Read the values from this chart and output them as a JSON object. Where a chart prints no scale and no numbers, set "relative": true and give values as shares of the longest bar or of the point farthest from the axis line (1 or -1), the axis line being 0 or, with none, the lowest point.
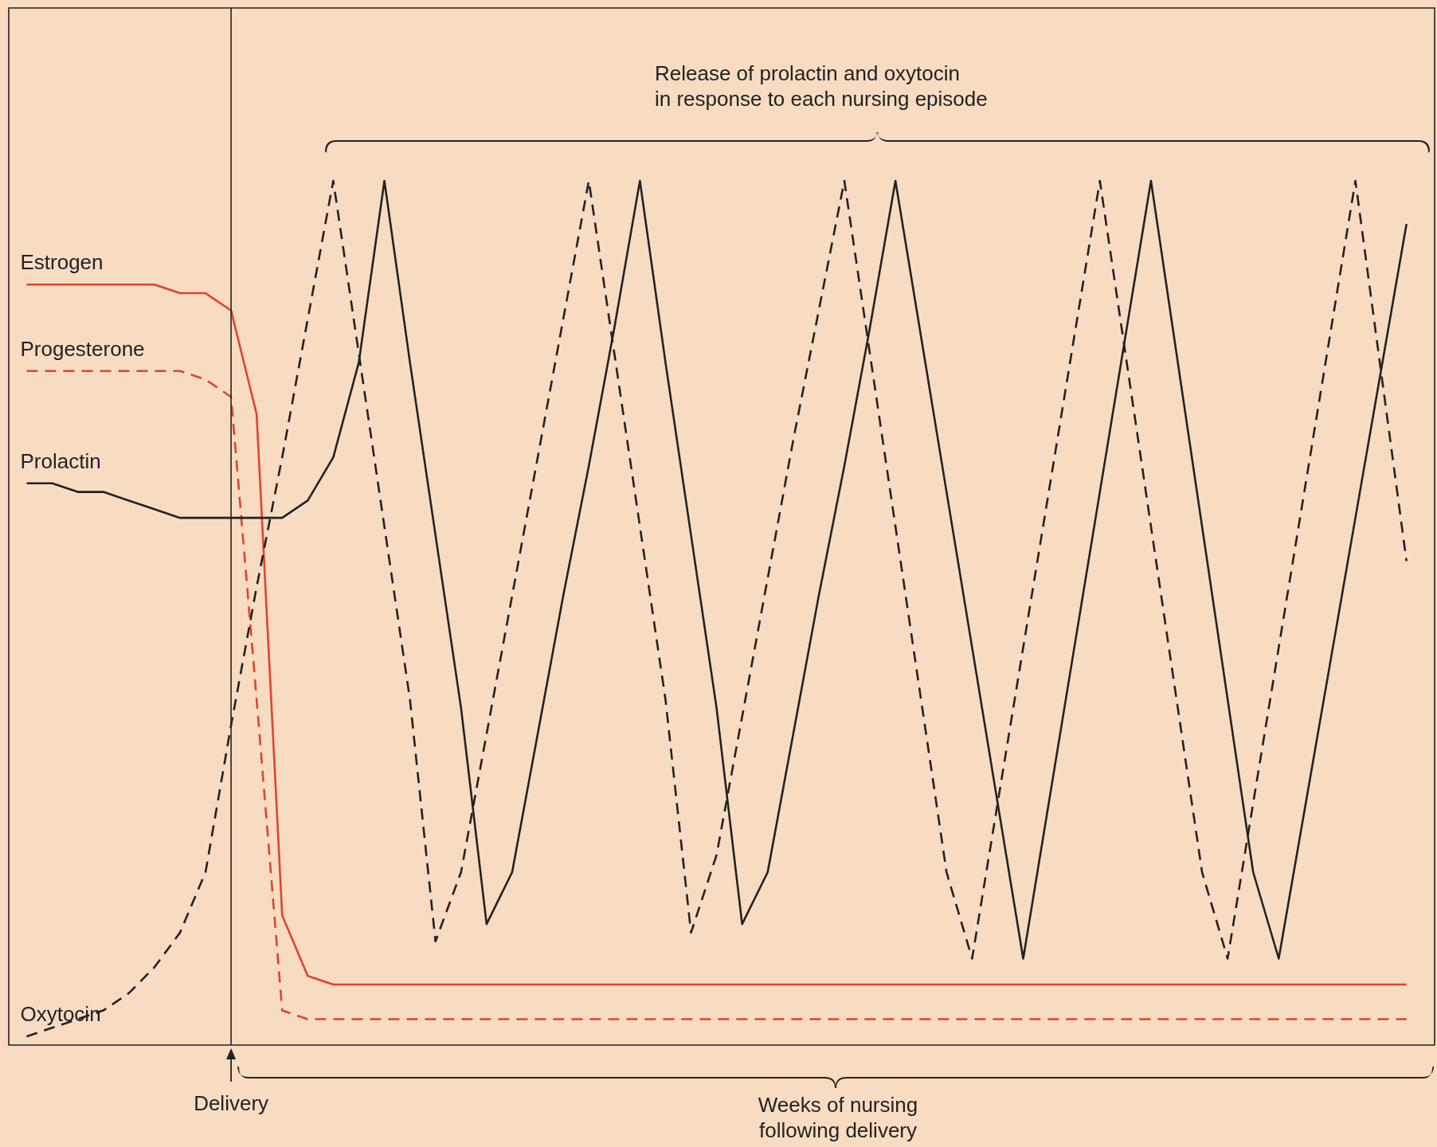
{
  "chart_data": {
    "type": "line",
    "relative": true,
    "categories": [
      null,
      null,
      null,
      null,
      null,
      null,
      null,
      null,
      null,
      null,
      null,
      null,
      null,
      null,
      null,
      null,
      null,
      null,
      null,
      null,
      null,
      null,
      null,
      null,
      null,
      null,
      null,
      null,
      null,
      null,
      null,
      null,
      null,
      null,
      null,
      null,
      null,
      null,
      null,
      null,
      null,
      null,
      null,
      null,
      null,
      null,
      null,
      null,
      null,
      null,
      null,
      null,
      null,
      null,
      null
    ],
    "series": [
      {
        "name": "Estrogen",
        "color": "#e0452a",
        "line_style": "solid",
        "values": [
          0.88,
          0.88,
          0.88,
          0.88,
          0.88,
          0.88,
          0.87,
          0.87,
          0.85,
          0.73,
          0.15,
          0.08,
          0.07,
          0.07,
          0.07,
          0.07,
          0.07,
          0.07,
          0.07,
          0.07,
          0.07,
          0.07,
          0.07,
          0.07,
          0.07,
          0.07,
          0.07,
          0.07,
          0.07,
          0.07,
          0.07,
          0.07,
          0.07,
          0.07,
          0.07,
          0.07,
          0.07,
          0.07,
          0.07,
          0.07,
          0.07,
          0.07,
          0.07,
          0.07,
          0.07,
          0.07,
          0.07,
          0.07,
          0.07,
          0.07,
          0.07,
          0.07,
          0.07,
          0.07,
          0.07
        ]
      },
      {
        "name": "Progesterone",
        "color": "#e0452a",
        "line_style": "dashed",
        "values": [
          0.78,
          0.78,
          0.78,
          0.78,
          0.78,
          0.78,
          0.78,
          0.77,
          0.75,
          0.4,
          0.04,
          0.03,
          0.03,
          0.03,
          0.03,
          0.03,
          0.03,
          0.03,
          0.03,
          0.03,
          0.03,
          0.03,
          0.03,
          0.03,
          0.03,
          0.03,
          0.03,
          0.03,
          0.03,
          0.03,
          0.03,
          0.03,
          0.03,
          0.03,
          0.03,
          0.03,
          0.03,
          0.03,
          0.03,
          0.03,
          0.03,
          0.03,
          0.03,
          0.03,
          0.03,
          0.03,
          0.03,
          0.03,
          0.03,
          0.03,
          0.03,
          0.03,
          0.03,
          0.03,
          0.03
        ]
      },
      {
        "name": "Prolactin",
        "color": "#222222",
        "line_style": "solid",
        "values": [
          0.65,
          0.65,
          0.64,
          0.64,
          0.63,
          0.62,
          0.61,
          0.61,
          0.61,
          0.61,
          0.61,
          0.63,
          0.68,
          0.79,
          1.0,
          0.79,
          0.59,
          0.39,
          0.14,
          0.2,
          0.36,
          0.52,
          0.67,
          0.83,
          1.0,
          0.79,
          0.59,
          0.39,
          0.14,
          0.2,
          0.36,
          0.52,
          0.67,
          0.83,
          1.0,
          0.82,
          0.64,
          0.46,
          0.28,
          0.1,
          0.28,
          0.46,
          0.64,
          0.82,
          1.0,
          0.8,
          0.6,
          0.4,
          0.2,
          0.1,
          0.27,
          0.44,
          0.61,
          0.78,
          0.95
        ]
      },
      {
        "name": "Oxytocin",
        "color": "#222222",
        "line_style": "dashed",
        "values": [
          0.01,
          0.02,
          0.03,
          0.04,
          0.06,
          0.09,
          0.13,
          0.2,
          0.37,
          0.53,
          0.68,
          0.84,
          1.0,
          0.8,
          0.6,
          0.4,
          0.12,
          0.2,
          0.36,
          0.52,
          0.68,
          0.84,
          1.0,
          0.8,
          0.6,
          0.4,
          0.13,
          0.22,
          0.38,
          0.54,
          0.7,
          0.85,
          1.0,
          0.8,
          0.6,
          0.4,
          0.2,
          0.1,
          0.28,
          0.46,
          0.64,
          0.82,
          1.0,
          0.8,
          0.6,
          0.4,
          0.2,
          0.1,
          0.28,
          0.46,
          0.64,
          0.82,
          1.0,
          0.78,
          0.56
        ]
      }
    ],
    "annotations": [
      "Release of prolactin and oxytocin in response to each nursing episode",
      "Delivery",
      "Weeks of nursing following delivery"
    ]
  }
}
